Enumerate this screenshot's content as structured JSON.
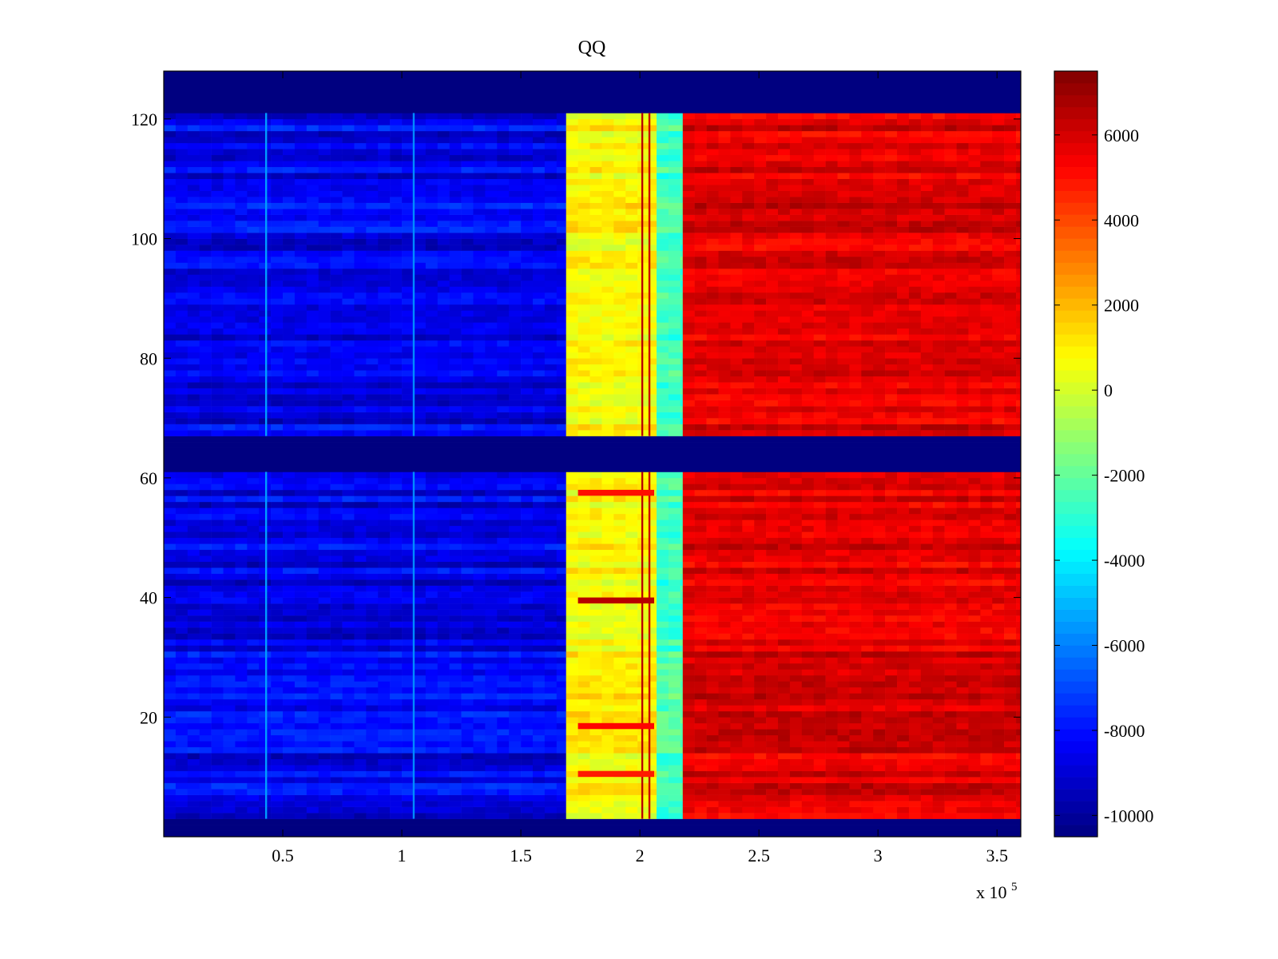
{
  "chart_data": {
    "type": "heatmap",
    "title": "QQ",
    "xlabel": "",
    "ylabel": "",
    "x_multiplier_label": "x 10",
    "x_multiplier_exponent": "5",
    "xlim": [
      0,
      3.6
    ],
    "ylim": [
      0,
      128
    ],
    "x_ticks": [
      0.5,
      1,
      1.5,
      2,
      2.5,
      3,
      3.5
    ],
    "x_tick_labels": [
      "0.5",
      "1",
      "1.5",
      "2",
      "2.5",
      "3",
      "3.5"
    ],
    "y_ticks": [
      20,
      40,
      60,
      80,
      100,
      120
    ],
    "y_tick_labels": [
      "20",
      "40",
      "60",
      "80",
      "100",
      "120"
    ],
    "colorbar": {
      "range": [
        -10500,
        7500
      ],
      "ticks": [
        6000,
        4000,
        2000,
        0,
        -2000,
        -4000,
        -6000,
        -8000,
        -10000
      ],
      "tick_labels": [
        "6000",
        "4000",
        "2000",
        "0",
        "-2000",
        "-4000",
        "-6000",
        "-8000",
        "-10000"
      ],
      "colormap": "jet"
    },
    "empty_row_bands": [
      [
        0,
        3
      ],
      [
        61,
        67
      ],
      [
        121,
        128
      ]
    ],
    "segments": [
      {
        "x_start": 0.0,
        "x_end": 1.69,
        "value": -8500,
        "description": "blue region"
      },
      {
        "x_start": 1.69,
        "x_end": 2.07,
        "value": 800,
        "description": "yellow region"
      },
      {
        "x_start": 2.07,
        "x_end": 2.18,
        "value": -2500,
        "description": "green-cyan band"
      },
      {
        "x_start": 2.18,
        "x_end": 3.6,
        "value": 5800,
        "description": "red region"
      }
    ],
    "vertical_streaks": [
      {
        "x": 0.43,
        "value": -5500
      },
      {
        "x": 1.05,
        "value": -5800
      },
      {
        "x": 2.01,
        "value": 6500
      },
      {
        "x": 2.04,
        "value": 6200
      }
    ],
    "horizontal_features": [
      {
        "row": 39,
        "x_start": 1.74,
        "x_end": 2.06,
        "value": 6500
      },
      {
        "row": 57,
        "x_start": 1.74,
        "x_end": 2.06,
        "value": 5000
      },
      {
        "row": 18,
        "x_start": 1.74,
        "x_end": 2.06,
        "value": 5200
      },
      {
        "row": 10,
        "x_start": 1.74,
        "x_end": 2.06,
        "value": 4800
      }
    ]
  }
}
